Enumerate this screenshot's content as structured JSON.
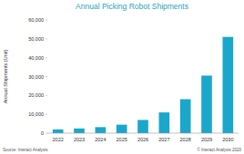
{
  "chart_data": {
    "type": "bar",
    "title": "Annual Picking Robot Shipments",
    "y_label": "Annual Shipments (Unit)",
    "categories": [
      "2022",
      "2023",
      "2024",
      "2025",
      "2026",
      "2027",
      "2028",
      "2029",
      "2030"
    ],
    "values": [
      2000,
      2500,
      3200,
      4500,
      7000,
      11000,
      18000,
      30500,
      51000
    ],
    "color": "#1ba7cc",
    "ylim": [
      0,
      60000
    ],
    "yticks": [
      0,
      {
        "value": 10000,
        "label": "10,000"
      },
      {
        "value": 20000,
        "label": "20,000"
      },
      {
        "value": 30000,
        "label": "30,000"
      },
      {
        "value": 40000,
        "label": "40,000"
      },
      {
        "value": 50000,
        "label": "50,000"
      },
      {
        "value": 60000,
        "label": "60,000"
      }
    ],
    "grid": false,
    "annotations": [
      "Source: Interact Analysis",
      "© Interact Analysis 2020"
    ]
  }
}
